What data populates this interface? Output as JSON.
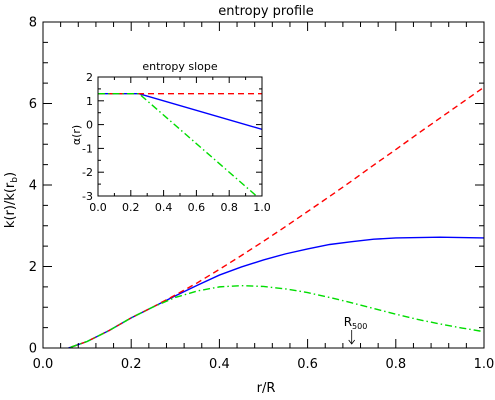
{
  "chart_data": [
    {
      "type": "line",
      "title": "entropy profile",
      "xlabel": "r/R",
      "ylabel": "k(r)/k(r",
      "ylabel_sub": "b",
      "ylabel_end": ")",
      "xlim": [
        0.0,
        1.0
      ],
      "ylim": [
        0,
        8
      ],
      "x_ticks": [
        0.0,
        0.2,
        0.4,
        0.6,
        0.8,
        1.0
      ],
      "x_tick_labels": [
        "0.0",
        "0.2",
        "0.4",
        "0.6",
        "0.8",
        "1.0"
      ],
      "y_ticks": [
        0,
        2,
        4,
        6,
        8
      ],
      "y_tick_labels": [
        "0",
        "2",
        "4",
        "6",
        "8"
      ],
      "grid": false,
      "annotation": {
        "text": "R",
        "sub": "500",
        "x": 0.7,
        "y": 0.0
      },
      "series": [
        {
          "style": "solid",
          "color": "#0000ff",
          "x": [
            0.0,
            0.05,
            0.1,
            0.15,
            0.2,
            0.25,
            0.3,
            0.35,
            0.4,
            0.45,
            0.5,
            0.55,
            0.6,
            0.65,
            0.7,
            0.75,
            0.8,
            0.85,
            0.9,
            0.95,
            1.0
          ],
          "y": [
            -0.2,
            -0.03,
            0.16,
            0.43,
            0.74,
            1.01,
            1.28,
            1.54,
            1.79,
            1.99,
            2.16,
            2.31,
            2.43,
            2.54,
            2.61,
            2.67,
            2.7,
            2.71,
            2.72,
            2.71,
            2.7
          ]
        },
        {
          "style": "dashed",
          "color": "#ff0000",
          "x": [
            0.0,
            0.05,
            0.1,
            0.15,
            0.2,
            0.25,
            0.3,
            0.35,
            0.4,
            0.45,
            0.5,
            0.55,
            0.6,
            0.65,
            0.7,
            0.75,
            0.8,
            0.85,
            0.9,
            0.95,
            1.0
          ],
          "y": [
            -0.2,
            -0.03,
            0.16,
            0.43,
            0.74,
            1.01,
            1.3,
            1.6,
            1.93,
            2.27,
            2.62,
            2.98,
            3.35,
            3.72,
            4.1,
            4.49,
            4.87,
            5.26,
            5.64,
            6.02,
            6.4
          ]
        },
        {
          "style": "dashdot",
          "color": "#00dd00",
          "x": [
            0.0,
            0.05,
            0.1,
            0.15,
            0.2,
            0.25,
            0.3,
            0.35,
            0.4,
            0.45,
            0.5,
            0.55,
            0.6,
            0.65,
            0.7,
            0.75,
            0.8,
            0.85,
            0.9,
            0.95,
            1.0
          ],
          "y": [
            -0.2,
            -0.03,
            0.16,
            0.43,
            0.74,
            1.01,
            1.24,
            1.4,
            1.5,
            1.53,
            1.51,
            1.45,
            1.36,
            1.24,
            1.11,
            0.97,
            0.83,
            0.7,
            0.59,
            0.49,
            0.4
          ]
        }
      ]
    },
    {
      "type": "line",
      "title": "entropy slope",
      "xlabel": "",
      "ylabel": "α(r)",
      "xlim": [
        0.0,
        1.0
      ],
      "ylim": [
        -3,
        2
      ],
      "x_ticks": [
        0.0,
        0.2,
        0.4,
        0.6,
        0.8,
        1.0
      ],
      "x_tick_labels": [
        "0.0",
        "0.2",
        "0.4",
        "0.6",
        "0.8",
        "1.0"
      ],
      "y_ticks": [
        -3,
        -2,
        -1,
        0,
        1,
        2
      ],
      "y_tick_labels": [
        "-3",
        "-2",
        "-1",
        "0",
        "1",
        "2"
      ],
      "grid": false,
      "series": [
        {
          "style": "solid",
          "color": "#0000ff",
          "x": [
            0.0,
            0.25,
            1.0
          ],
          "y": [
            1.3,
            1.3,
            -0.2
          ]
        },
        {
          "style": "dashed",
          "color": "#ff0000",
          "x": [
            0.0,
            1.0
          ],
          "y": [
            1.3,
            1.3
          ]
        },
        {
          "style": "dashdot",
          "color": "#00dd00",
          "x": [
            0.0,
            0.25,
            1.0
          ],
          "y": [
            1.3,
            1.3,
            -3.2
          ]
        }
      ]
    }
  ]
}
